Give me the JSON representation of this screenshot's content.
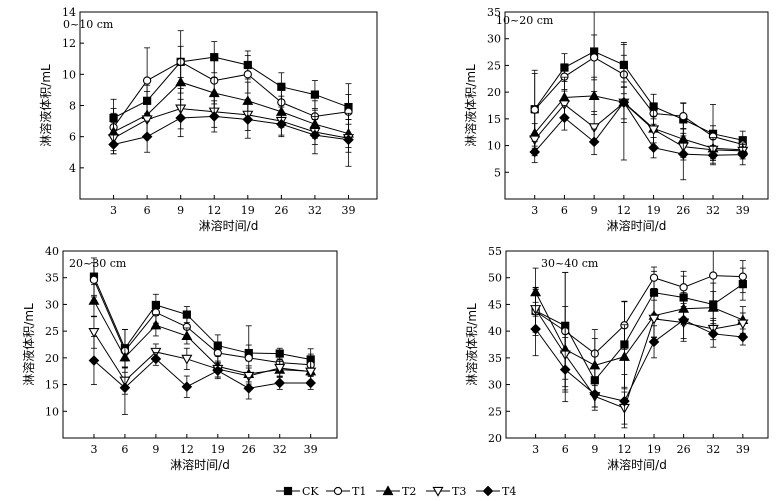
{
  "legend": {
    "entries": [
      {
        "name": "CK",
        "marker": "square-filled"
      },
      {
        "name": "T1",
        "marker": "circle-open"
      },
      {
        "name": "T2",
        "marker": "triangle-up-filled"
      },
      {
        "name": "T3",
        "marker": "triangle-down-open"
      },
      {
        "name": "T4",
        "marker": "diamond-filled"
      }
    ]
  },
  "chart_data": [
    {
      "type": "line",
      "panel_label": "0~10 cm",
      "xlabel": "淋溶时间/d",
      "ylabel": "淋溶液体积/mL",
      "categories": [
        "3",
        "6",
        "9",
        "12",
        "19",
        "26",
        "32",
        "39"
      ],
      "ylim": [
        2,
        14
      ],
      "yticks": [
        4,
        6,
        8,
        10,
        12,
        14
      ],
      "series": [
        {
          "name": "CK",
          "values": [
            7.2,
            8.3,
            10.8,
            11.1,
            10.6,
            9.2,
            8.7,
            7.9
          ],
          "errors": [
            1.2,
            1.0,
            1.0,
            1.0,
            0.9,
            0.9,
            0.9,
            0.8
          ]
        },
        {
          "name": "T1",
          "values": [
            6.6,
            9.6,
            10.8,
            9.6,
            10.0,
            8.2,
            7.3,
            7.6
          ],
          "errors": [
            1.2,
            2.1,
            2.0,
            1.5,
            1.2,
            1.0,
            1.0,
            1.8
          ]
        },
        {
          "name": "T2",
          "values": [
            6.3,
            7.4,
            9.5,
            8.8,
            8.3,
            7.6,
            6.8,
            6.2
          ],
          "errors": [
            1.2,
            1.5,
            1.5,
            1.0,
            1.2,
            1.0,
            0.9,
            0.9
          ]
        },
        {
          "name": "T3",
          "values": [
            5.9,
            7.1,
            7.8,
            7.6,
            7.4,
            7.0,
            6.3,
            5.9
          ],
          "errors": [
            1.0,
            1.2,
            1.3,
            1.0,
            1.0,
            0.9,
            0.8,
            0.9
          ]
        },
        {
          "name": "T4",
          "values": [
            5.5,
            6.0,
            7.2,
            7.3,
            7.1,
            6.8,
            6.1,
            5.8
          ],
          "errors": [
            0.6,
            1.0,
            1.2,
            1.0,
            1.2,
            0.8,
            1.2,
            1.7
          ]
        }
      ]
    },
    {
      "type": "line",
      "panel_label": "10~20 cm",
      "xlabel": "淋溶时间/d",
      "ylabel": "淋溶液体积/mL",
      "categories": [
        "3",
        "6",
        "9",
        "12",
        "19",
        "26",
        "32",
        "39"
      ],
      "ylim": [
        0,
        35
      ],
      "yticks": [
        5,
        10,
        15,
        20,
        25,
        30,
        35
      ],
      "series": [
        {
          "name": "CK",
          "values": [
            16.8,
            24.6,
            27.6,
            25.1,
            17.3,
            14.9,
            12.2,
            11.0
          ],
          "errors": [
            7.3,
            2.6,
            7.5,
            4.2,
            2.3,
            3.1,
            5.5,
            1.7
          ]
        },
        {
          "name": "T1",
          "values": [
            16.7,
            22.9,
            26.5,
            23.3,
            16.0,
            15.5,
            11.7,
            10.2
          ],
          "errors": [
            6.8,
            2.4,
            4.2,
            3.6,
            2.0,
            2.4,
            2.0,
            1.0
          ]
        },
        {
          "name": "T2",
          "values": [
            12.3,
            19.0,
            19.3,
            18.1,
            13.2,
            11.2,
            9.5,
            9.2
          ],
          "errors": [
            3.8,
            3.8,
            3.5,
            3.8,
            3.4,
            3.4,
            2.0,
            1.3
          ]
        },
        {
          "name": "T3",
          "values": [
            11.1,
            17.7,
            13.4,
            18.0,
            13.0,
            9.8,
            9.2,
            9.0
          ],
          "errors": [
            3.0,
            2.5,
            3.0,
            3.0,
            2.5,
            2.5,
            2.0,
            1.5
          ]
        },
        {
          "name": "T4",
          "values": [
            8.8,
            15.2,
            10.7,
            18.1,
            9.6,
            8.4,
            8.2,
            8.3
          ],
          "errors": [
            2.0,
            2.3,
            2.4,
            10.8,
            1.9,
            4.8,
            1.8,
            1.9
          ]
        }
      ]
    },
    {
      "type": "line",
      "panel_label": "20~30 cm",
      "xlabel": "淋溶时间/d",
      "ylabel": "淋溶液体积/mL",
      "categories": [
        "3",
        "6",
        "9",
        "12",
        "19",
        "26",
        "32",
        "39"
      ],
      "ylim": [
        5,
        40
      ],
      "yticks": [
        10,
        15,
        20,
        25,
        30,
        35,
        40
      ],
      "series": [
        {
          "name": "CK",
          "values": [
            35.2,
            21.8,
            29.9,
            28.1,
            22.3,
            20.9,
            20.8,
            19.7
          ],
          "errors": [
            3.5,
            3.5,
            2.0,
            1.5,
            2.0,
            1.5,
            1.0,
            2.0
          ]
        },
        {
          "name": "T1",
          "values": [
            34.6,
            21.3,
            28.5,
            25.8,
            20.9,
            20.0,
            19.1,
            18.7
          ],
          "errors": [
            3.2,
            4.0,
            2.0,
            2.0,
            2.0,
            6.0,
            1.5,
            2.0
          ]
        },
        {
          "name": "T2",
          "values": [
            30.7,
            20.1,
            26.1,
            24.1,
            18.4,
            17.0,
            17.8,
            17.5
          ],
          "errors": [
            3.0,
            2.0,
            2.0,
            1.5,
            2.0,
            1.5,
            1.5,
            2.0
          ]
        },
        {
          "name": "T3",
          "values": [
            24.8,
            15.7,
            21.1,
            19.8,
            17.9,
            16.6,
            18.1,
            17.4
          ],
          "errors": [
            3.0,
            2.5,
            1.5,
            2.0,
            1.5,
            1.5,
            1.5,
            2.0
          ]
        },
        {
          "name": "T4",
          "values": [
            19.5,
            14.4,
            19.8,
            14.6,
            17.6,
            14.3,
            15.3,
            15.3
          ],
          "errors": [
            4.5,
            5.0,
            1.2,
            2.0,
            1.5,
            2.0,
            1.2,
            1.2
          ]
        }
      ]
    },
    {
      "type": "line",
      "panel_label": "30~40 cm",
      "xlabel": "淋溶时间/d",
      "ylabel": "淋溶液体积/mL",
      "categories": [
        "3",
        "6",
        "9",
        "12",
        "19",
        "26",
        "32",
        "39"
      ],
      "ylim": [
        20,
        55
      ],
      "yticks": [
        20,
        25,
        30,
        35,
        40,
        45,
        50,
        55
      ],
      "series": [
        {
          "name": "CK",
          "values": [
            43.8,
            41.0,
            30.8,
            37.5,
            47.2,
            46.3,
            45.0,
            48.8
          ],
          "errors": [
            4.0,
            10.0,
            5.0,
            8.0,
            4.0,
            4.0,
            4.0,
            3.0
          ]
        },
        {
          "name": "T1",
          "values": [
            43.7,
            40.0,
            35.8,
            41.1,
            50.0,
            48.2,
            50.4,
            50.2
          ],
          "errors": [
            4.5,
            11.0,
            4.5,
            4.5,
            2.0,
            3.0,
            5.0,
            3.0
          ]
        },
        {
          "name": "T2",
          "values": [
            47.3,
            36.6,
            33.6,
            35.2,
            42.9,
            44.2,
            44.4,
            42.1
          ],
          "errors": [
            4.5,
            8.0,
            5.0,
            6.0,
            4.0,
            3.0,
            3.0,
            2.5
          ]
        },
        {
          "name": "T3",
          "values": [
            44.1,
            35.6,
            27.8,
            25.6,
            42.3,
            41.6,
            40.4,
            41.4
          ],
          "errors": [
            4.0,
            6.0,
            2.0,
            3.0,
            3.5,
            3.0,
            2.0,
            2.0
          ]
        },
        {
          "name": "T4",
          "values": [
            40.4,
            32.8,
            28.2,
            26.9,
            38.0,
            42.1,
            39.5,
            38.9
          ],
          "errors": [
            5.0,
            6.0,
            3.0,
            5.0,
            3.0,
            4.0,
            2.5,
            1.5
          ]
        }
      ]
    }
  ]
}
